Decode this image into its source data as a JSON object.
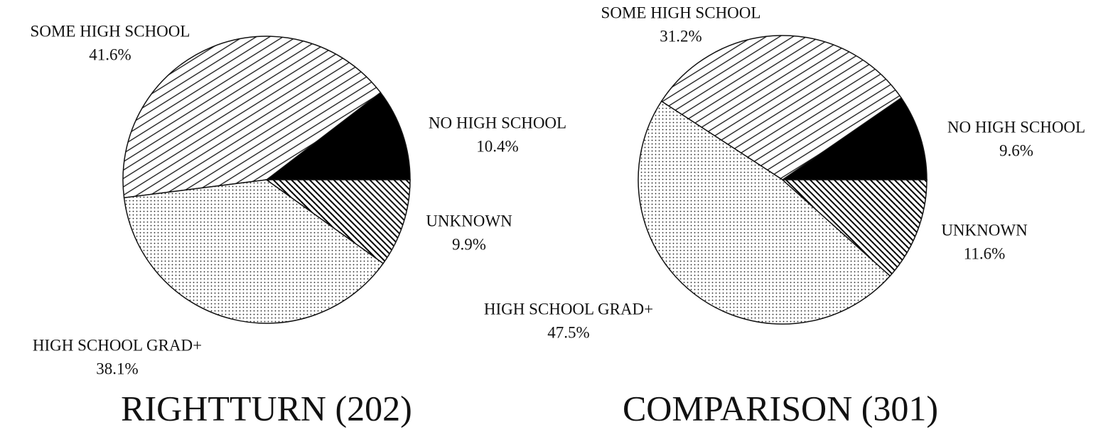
{
  "chart_data": [
    {
      "type": "pie",
      "title": "RIGHTTURN (202)",
      "categories": [
        "NO HIGH SCHOOL",
        "SOME HIGH SCHOOL",
        "HIGH SCHOOL GRAD+",
        "UNKNOWN"
      ],
      "values": [
        10.4,
        41.6,
        38.1,
        9.9
      ],
      "value_labels": [
        "10.4%",
        "41.6%",
        "38.1%",
        "9.9%"
      ]
    },
    {
      "type": "pie",
      "title": "COMPARISON (301)",
      "categories": [
        "NO HIGH SCHOOL",
        "SOME HIGH SCHOOL",
        "HIGH SCHOOL GRAD+",
        "UNKNOWN"
      ],
      "values": [
        9.6,
        31.2,
        47.5,
        11.6
      ],
      "value_labels": [
        "9.6%",
        "31.2%",
        "47.5%",
        "11.6%"
      ]
    }
  ]
}
